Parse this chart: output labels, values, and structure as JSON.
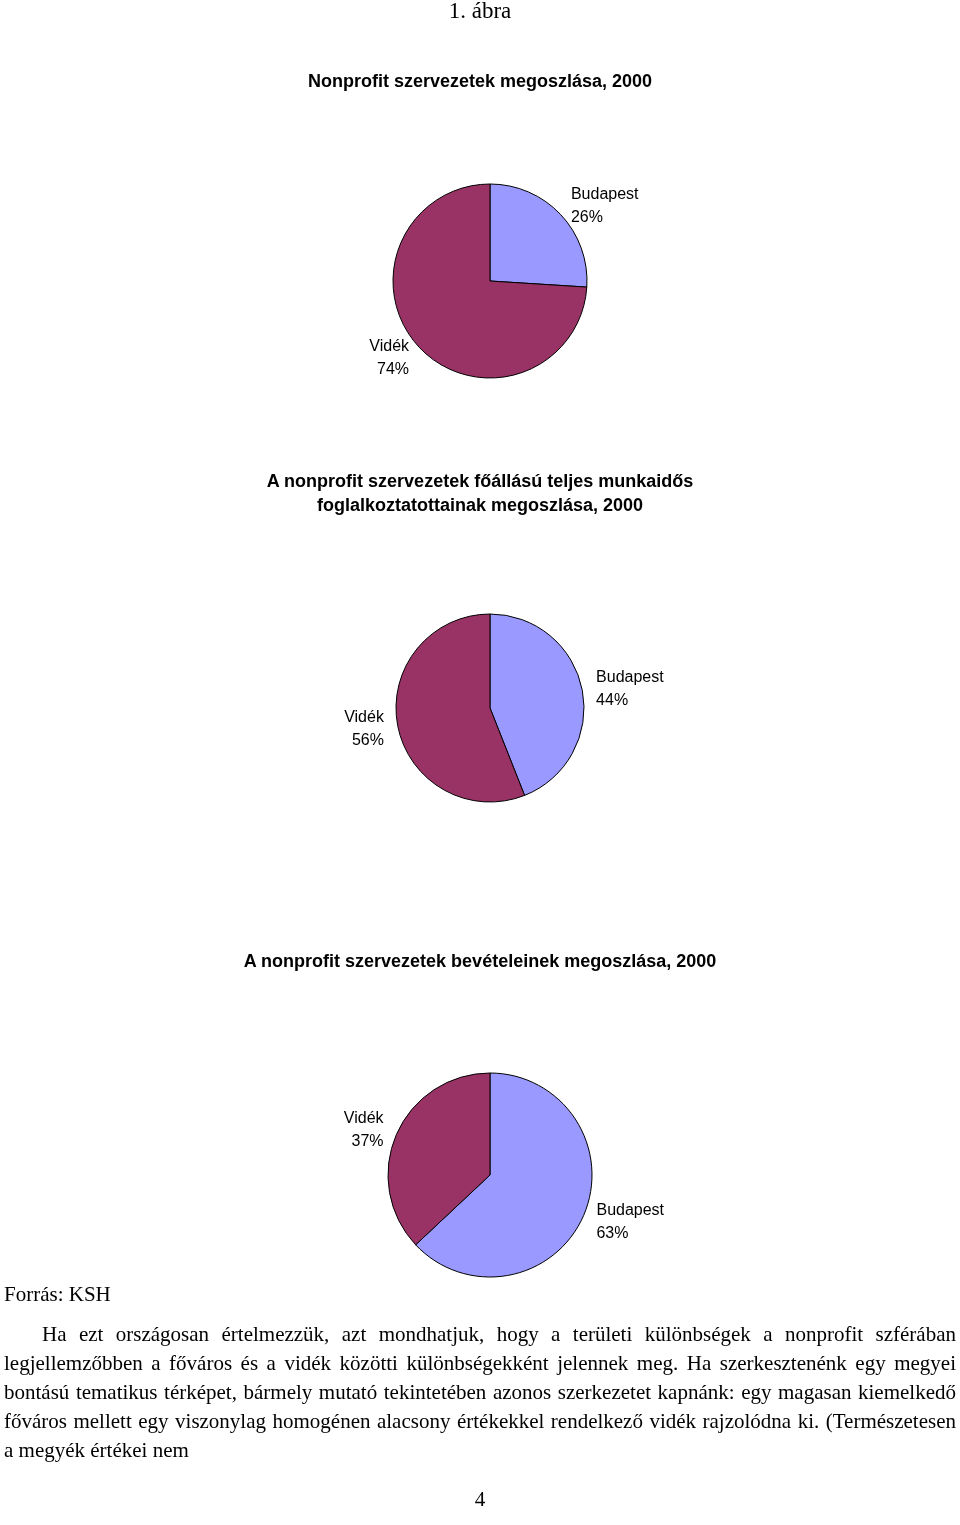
{
  "chart_data": [
    {
      "type": "pie",
      "title": "Nonprofit szervezetek megoszlása, 2000",
      "annotations": [
        "1. ábra"
      ],
      "categories": [
        "Budapest",
        "Vidék"
      ],
      "values": [
        26,
        74
      ],
      "colors": [
        "#9999ff",
        "#993366"
      ],
      "value_labels": [
        "26%",
        "74%"
      ]
    },
    {
      "type": "pie",
      "title": "A nonprofit szervezetek főállású teljes munkaidős\nfoglalkoztatottainak megoszlása, 2000",
      "categories": [
        "Budapest",
        "Vidék"
      ],
      "values": [
        44,
        56
      ],
      "colors": [
        "#9999ff",
        "#993366"
      ],
      "value_labels": [
        "44%",
        "56%"
      ]
    },
    {
      "type": "pie",
      "title": "A nonprofit szervezetek bevételeinek megoszlása, 2000",
      "annotations": [
        "Forrás: KSH",
        "Ha ezt országosan értelmezzük, azt mondhatjuk, hogy a területi különbségek a nonprofit szférában legjellemzőbben a főváros és a vidék közötti különbségekként jelennek meg. Ha szerkesztenénk egy megyei bontású tematikus térképet, bármely mutató tekintetében azonos szerkezetet kapnánk: egy magasan kiemelkedő főváros mellett egy viszonylag homogénen alacsony értékekkel rendelkező vidék rajzolódna ki. (Természetesen a megyék értékei nem",
        "4"
      ],
      "categories": [
        "Budapest",
        "Vidék"
      ],
      "values": [
        63,
        37
      ],
      "colors": [
        "#9999ff",
        "#993366"
      ],
      "value_labels": [
        "63%",
        "37%"
      ]
    }
  ]
}
